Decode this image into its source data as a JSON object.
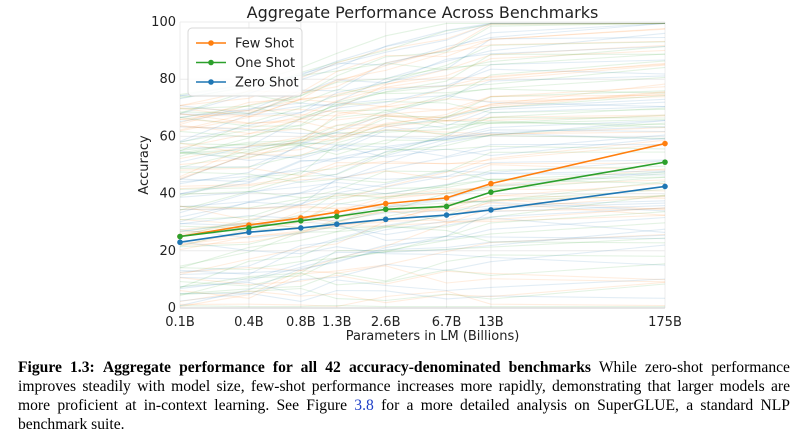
{
  "chart_data": {
    "type": "line",
    "title": "Aggregate Performance Across Benchmarks",
    "xlabel": "Parameters in LM (Billions)",
    "ylabel": "Accuracy",
    "ylim": [
      0,
      100
    ],
    "yticks": [
      "0",
      "20",
      "40",
      "60",
      "80",
      "100"
    ],
    "x": [
      0.125,
      0.35,
      0.76,
      1.3,
      2.7,
      6.7,
      13,
      175
    ],
    "xtick_labels": [
      "0.1B",
      "0.4B",
      "0.8B",
      "1.3B",
      "2.6B",
      "6.7B",
      "13B",
      "175B"
    ],
    "grid": true,
    "legend_position": "top-left",
    "series": [
      {
        "name": "Few Shot",
        "color": "#ff7f0e",
        "values": [
          25.0,
          29.0,
          31.5,
          33.5,
          36.5,
          38.5,
          43.5,
          57.5
        ]
      },
      {
        "name": "One Shot",
        "color": "#2ca02c",
        "values": [
          25.0,
          28.0,
          30.5,
          32.0,
          34.5,
          35.5,
          40.5,
          51.0
        ]
      },
      {
        "name": "Zero Shot",
        "color": "#1f77b4",
        "values": [
          23.0,
          26.5,
          28.0,
          29.3,
          31.0,
          32.5,
          34.3,
          42.5
        ]
      }
    ]
  },
  "caption": {
    "label": "Figure 1.3:",
    "bold_text": "Aggregate performance for all 42 accuracy-denominated benchmarks",
    "text_before_ref": "While zero-shot performance improves steadily with model size, few-shot performance increases more rapidly, demonstrating that larger models are more proficient at in-context learning. See Figure",
    "ref": "3.8",
    "text_after_ref": "for a more detailed analysis on SuperGLUE, a standard NLP benchmark suite."
  }
}
